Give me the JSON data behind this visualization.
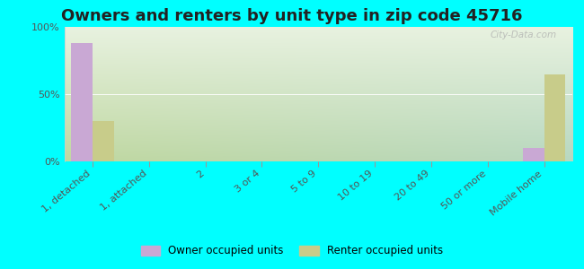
{
  "title": "Owners and renters by unit type in zip code 45716",
  "categories": [
    "1, detached",
    "1, attached",
    "2",
    "3 or 4",
    "5 to 9",
    "10 to 19",
    "20 to 49",
    "50 or more",
    "Mobile home"
  ],
  "owner_values": [
    88,
    0,
    0,
    0,
    0,
    0,
    0,
    0,
    10
  ],
  "renter_values": [
    30,
    0,
    0,
    0,
    0,
    0,
    0,
    0,
    65
  ],
  "owner_color": "#c9a8d4",
  "renter_color": "#c8cc8a",
  "ylim": [
    0,
    100
  ],
  "yticks": [
    0,
    50,
    100
  ],
  "ytick_labels": [
    "0%",
    "50%",
    "100%"
  ],
  "grad_top": "#e8f2e0",
  "grad_bottom": "#c8dca8",
  "grad_right": "#c8e0d0",
  "outer_background": "#00ffff",
  "title_fontsize": 13,
  "axis_label_fontsize": 8,
  "watermark": "City-Data.com",
  "legend_labels": [
    "Owner occupied units",
    "Renter occupied units"
  ]
}
